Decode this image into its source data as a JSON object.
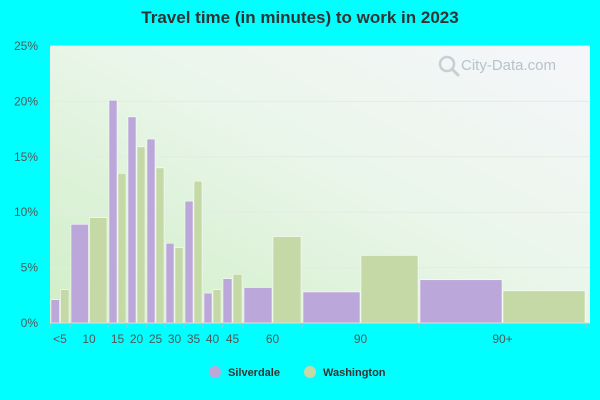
{
  "chart_data": {
    "type": "bar",
    "title": "Travel time (in minutes) to work in 2023",
    "categories": [
      "<5",
      "10",
      "15",
      "20",
      "25",
      "30",
      "35",
      "40",
      "45",
      "60",
      "90",
      "90+"
    ],
    "series": [
      {
        "name": "Silverdale",
        "color": "#bca7da",
        "values": [
          2.1,
          8.9,
          20.1,
          18.6,
          16.6,
          7.2,
          11.0,
          2.7,
          4.0,
          3.2,
          2.8,
          3.9
        ]
      },
      {
        "name": "Washington",
        "color": "#c4d9a6",
        "values": [
          3.0,
          9.5,
          13.5,
          15.9,
          14.0,
          6.8,
          12.8,
          3.0,
          4.4,
          7.8,
          6.1,
          2.9
        ]
      }
    ],
    "xlabel": "",
    "ylabel": "",
    "ylim": [
      0,
      25
    ],
    "yticks": [
      "0%",
      "5%",
      "10%",
      "15%",
      "20%",
      "25%"
    ],
    "grid": true,
    "legend_position": "bottom",
    "watermark": "City-Data.com"
  }
}
